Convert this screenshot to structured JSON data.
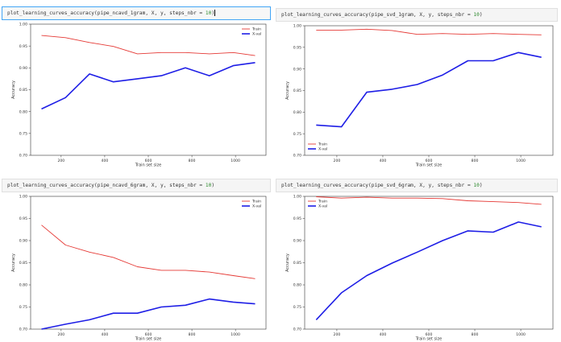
{
  "cells": [
    {
      "code": {
        "prefix": "plot_learning_curves_accuracy(pipe_ncavd_1gram, X, y, steps_nbr = ",
        "num": "10",
        "suffix": ")",
        "active": true
      },
      "chart_data": {
        "type": "line",
        "x": [
          110,
          220,
          330,
          440,
          550,
          660,
          770,
          880,
          990,
          1090
        ],
        "series": [
          {
            "name": "Train",
            "color": "#e53935",
            "values": [
              0.974,
              0.969,
              0.958,
              0.949,
              0.932,
              0.935,
              0.935,
              0.932,
              0.935,
              0.928
            ]
          },
          {
            "name": "X-val",
            "color": "#1e1ee6",
            "values": [
              0.806,
              0.832,
              0.886,
              0.868,
              0.875,
              0.882,
              0.9,
              0.882,
              0.905,
              0.912
            ]
          }
        ],
        "xticks": [
          200,
          400,
          600,
          800,
          1000
        ],
        "yticks": [
          0.7,
          0.75,
          0.8,
          0.85,
          0.9,
          0.95,
          1.0
        ],
        "ytick_labels": [
          "0.70",
          "0.75",
          "0.80",
          "0.85",
          "0.90",
          "0.95",
          "1.00"
        ],
        "xlim": [
          60,
          1140
        ],
        "ylim": [
          0.7,
          1.0
        ],
        "xlabel": "Train set size",
        "ylabel": "Accuracy",
        "legend": "top-right"
      }
    },
    {
      "code": {
        "prefix": "plot_learning_curves_accuracy(pipe_svd_1gram, X, y, steps_nbr = ",
        "num": "10",
        "suffix": ")",
        "active": false
      },
      "chart_data": {
        "type": "line",
        "x": [
          110,
          220,
          330,
          440,
          550,
          660,
          770,
          880,
          990,
          1090
        ],
        "series": [
          {
            "name": "Train",
            "color": "#e53935",
            "values": [
              0.99,
              0.99,
              0.992,
              0.989,
              0.98,
              0.982,
              0.98,
              0.982,
              0.98,
              0.979
            ]
          },
          {
            "name": "X-val",
            "color": "#1e1ee6",
            "values": [
              0.77,
              0.766,
              0.846,
              0.853,
              0.864,
              0.886,
              0.919,
              0.919,
              0.938,
              0.927
            ]
          }
        ],
        "xticks": [
          200,
          400,
          600,
          800,
          1000
        ],
        "yticks": [
          0.7,
          0.75,
          0.8,
          0.85,
          0.9,
          0.95,
          1.0
        ],
        "ytick_labels": [
          "0.70",
          "0.75",
          "0.80",
          "0.85",
          "0.90",
          "0.95",
          "1.00"
        ],
        "xlim": [
          60,
          1140
        ],
        "ylim": [
          0.7,
          1.0
        ],
        "xlabel": "Train set size",
        "ylabel": "Accuracy",
        "legend": "bottom-left"
      }
    },
    {
      "code": {
        "prefix": "plot_learning_curves_accuracy(pipe_ncavd_6gram, X, y, steps_nbr = ",
        "num": "10",
        "suffix": ")",
        "active": false
      },
      "chart_data": {
        "type": "line",
        "x": [
          110,
          220,
          330,
          440,
          550,
          660,
          770,
          880,
          990,
          1090
        ],
        "series": [
          {
            "name": "Train",
            "color": "#e53935",
            "values": [
              0.935,
              0.89,
              0.874,
              0.862,
              0.841,
              0.833,
              0.833,
              0.829,
              0.821,
              0.814
            ]
          },
          {
            "name": "X-val",
            "color": "#1e1ee6",
            "values": [
              0.696,
              0.711,
              0.721,
              0.736,
              0.736,
              0.75,
              0.754,
              0.768,
              0.761,
              0.757
            ]
          }
        ],
        "xticks": [
          200,
          400,
          600,
          800,
          1000
        ],
        "yticks": [
          0.7,
          0.75,
          0.8,
          0.85,
          0.9,
          0.95,
          1.0
        ],
        "ytick_labels": [
          "0.70",
          "0.75",
          "0.80",
          "0.85",
          "0.90",
          "0.95",
          "1.00"
        ],
        "xlim": [
          60,
          1140
        ],
        "ylim": [
          0.7,
          1.0
        ],
        "xlabel": "Train set size",
        "ylabel": "Accuracy",
        "legend": "top-right"
      }
    },
    {
      "code": {
        "prefix": "plot_learning_curves_accuracy(pipe_svd_6gram, X, y, steps_nbr = ",
        "num": "10",
        "suffix": ")",
        "active": false
      },
      "chart_data": {
        "type": "line",
        "x": [
          110,
          220,
          330,
          440,
          550,
          660,
          770,
          880,
          990,
          1090
        ],
        "series": [
          {
            "name": "Train",
            "color": "#e53935",
            "values": [
              0.999,
              0.996,
              0.998,
              0.996,
              0.996,
              0.995,
              0.99,
              0.988,
              0.986,
              0.982
            ]
          },
          {
            "name": "X-val",
            "color": "#1e1ee6",
            "values": [
              0.721,
              0.782,
              0.821,
              0.849,
              0.874,
              0.9,
              0.922,
              0.919,
              0.942,
              0.931
            ]
          }
        ],
        "xticks": [
          200,
          400,
          600,
          800,
          1000
        ],
        "yticks": [
          0.7,
          0.75,
          0.8,
          0.85,
          0.9,
          0.95,
          1.0
        ],
        "ytick_labels": [
          "0.70",
          "0.75",
          "0.80",
          "0.85",
          "0.90",
          "0.95",
          "1.00"
        ],
        "xlim": [
          60,
          1140
        ],
        "ylim": [
          0.7,
          1.0
        ],
        "xlabel": "Train set size",
        "ylabel": "Accuracy",
        "legend": "top-left"
      }
    }
  ]
}
